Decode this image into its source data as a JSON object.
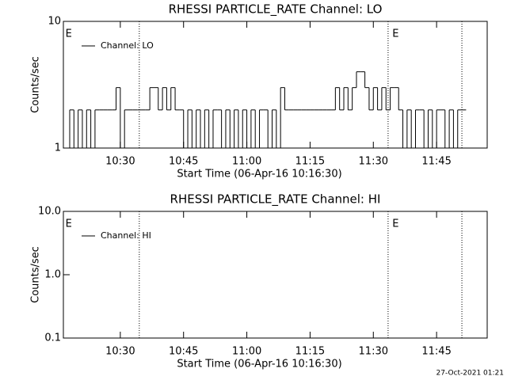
{
  "chart_data": [
    {
      "type": "line",
      "title": "RHESSI PARTICLE_RATE Channel: LO",
      "xlabel": "Start Time (06-Apr-16 10:16:30)",
      "ylabel": "Counts/sec",
      "log_y": true,
      "step": true,
      "legend": "upper left",
      "xlim": [
        616.5,
        717
      ],
      "ylim": [
        1,
        10
      ],
      "yticks": [
        1,
        10
      ],
      "xticks": [
        {
          "value": 630,
          "label": "10:30"
        },
        {
          "value": 645,
          "label": "10:45"
        },
        {
          "value": 660,
          "label": "11:00"
        },
        {
          "value": 675,
          "label": "11:15"
        },
        {
          "value": 690,
          "label": "11:30"
        },
        {
          "value": 705,
          "label": "11:45"
        }
      ],
      "vlines": [
        634.5,
        693.5,
        711
      ],
      "annotations": [
        {
          "text": "E",
          "x": 617
        },
        {
          "text": "E",
          "x": 694.5
        }
      ],
      "x": [
        617,
        618,
        619,
        620,
        621,
        622,
        623,
        624,
        625,
        626,
        627,
        628,
        629,
        630,
        631,
        632,
        633,
        634,
        635,
        636,
        637,
        638,
        639,
        640,
        641,
        642,
        643,
        644,
        645,
        646,
        647,
        648,
        649,
        650,
        651,
        652,
        653,
        654,
        655,
        656,
        657,
        658,
        659,
        660,
        661,
        662,
        663,
        664,
        665,
        666,
        667,
        668,
        669,
        670,
        671,
        672,
        673,
        674,
        675,
        676,
        677,
        678,
        679,
        680,
        681,
        682,
        683,
        684,
        685,
        686,
        687,
        688,
        689,
        690,
        691,
        692,
        693,
        694,
        695,
        696,
        697,
        698,
        699,
        700,
        701,
        702,
        703,
        704,
        705,
        706,
        707,
        708,
        709,
        710,
        711
      ],
      "series": [
        {
          "name": "Channel: LO",
          "color": "#000000",
          "values": [
            1,
            2,
            1,
            2,
            1,
            2,
            1,
            2,
            2,
            2,
            2,
            2,
            3,
            1,
            2,
            2,
            2,
            2,
            2,
            2,
            3,
            3,
            2,
            3,
            2,
            3,
            2,
            2,
            1,
            2,
            1,
            2,
            1,
            2,
            1,
            2,
            2,
            1,
            2,
            1,
            2,
            1,
            2,
            1,
            2,
            1,
            2,
            2,
            1,
            2,
            1,
            3,
            2,
            2,
            2,
            2,
            2,
            2,
            2,
            2,
            2,
            2,
            2,
            2,
            3,
            2,
            3,
            2,
            3,
            4,
            4,
            3,
            2,
            3,
            2,
            3,
            2,
            3,
            3,
            2,
            1,
            2,
            1,
            2,
            2,
            1,
            2,
            1,
            2,
            2,
            1,
            2,
            1,
            2,
            2
          ]
        }
      ]
    },
    {
      "type": "line",
      "title": "RHESSI PARTICLE_RATE Channel: HI",
      "xlabel": "Start Time (06-Apr-16 10:16:30)",
      "ylabel": "Counts/sec",
      "log_y": true,
      "step": true,
      "legend": "upper left",
      "xlim": [
        616.5,
        717
      ],
      "ylim": [
        0.1,
        10
      ],
      "yticks": [
        0.1,
        {
          "value": 1,
          "label": "1.0"
        },
        {
          "value": 10,
          "label": "10.0"
        }
      ],
      "xticks": [
        {
          "value": 630,
          "label": "10:30"
        },
        {
          "value": 645,
          "label": "10:45"
        },
        {
          "value": 660,
          "label": "11:00"
        },
        {
          "value": 675,
          "label": "11:15"
        },
        {
          "value": 690,
          "label": "11:30"
        },
        {
          "value": 705,
          "label": "11:45"
        }
      ],
      "vlines": [
        634.5,
        693.5,
        711
      ],
      "annotations": [
        {
          "text": "E",
          "x": 617
        },
        {
          "text": "E",
          "x": 694.5
        }
      ],
      "x": [],
      "series": [
        {
          "name": "Channel: HI",
          "color": "#000000",
          "values": []
        }
      ]
    }
  ],
  "footer": "27-Oct-2021 01:21"
}
